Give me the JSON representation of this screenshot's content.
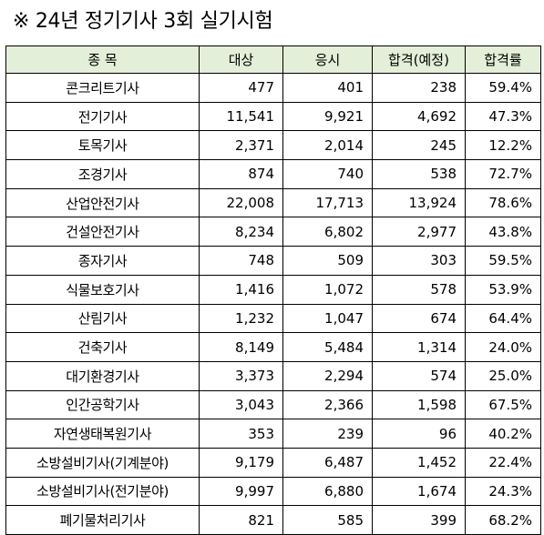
{
  "title": "※ 24년 정기기사 3회 실기시험",
  "table": {
    "headers": {
      "name": "종  목",
      "applicants": "대상",
      "examinees": "응시",
      "passed": "합격(예정)",
      "pass_rate": "합격률"
    },
    "rows": [
      {
        "name": "콘크리트기사",
        "applicants": "477",
        "examinees": "401",
        "passed": "238",
        "pass_rate": "59.4%"
      },
      {
        "name": "전기기사",
        "applicants": "11,541",
        "examinees": "9,921",
        "passed": "4,692",
        "pass_rate": "47.3%"
      },
      {
        "name": "토목기사",
        "applicants": "2,371",
        "examinees": "2,014",
        "passed": "245",
        "pass_rate": "12.2%"
      },
      {
        "name": "조경기사",
        "applicants": "874",
        "examinees": "740",
        "passed": "538",
        "pass_rate": "72.7%"
      },
      {
        "name": "산업안전기사",
        "applicants": "22,008",
        "examinees": "17,713",
        "passed": "13,924",
        "pass_rate": "78.6%"
      },
      {
        "name": "건설안전기사",
        "applicants": "8,234",
        "examinees": "6,802",
        "passed": "2,977",
        "pass_rate": "43.8%"
      },
      {
        "name": "종자기사",
        "applicants": "748",
        "examinees": "509",
        "passed": "303",
        "pass_rate": "59.5%"
      },
      {
        "name": "식물보호기사",
        "applicants": "1,416",
        "examinees": "1,072",
        "passed": "578",
        "pass_rate": "53.9%"
      },
      {
        "name": "산림기사",
        "applicants": "1,232",
        "examinees": "1,047",
        "passed": "674",
        "pass_rate": "64.4%"
      },
      {
        "name": "건축기사",
        "applicants": "8,149",
        "examinees": "5,484",
        "passed": "1,314",
        "pass_rate": "24.0%"
      },
      {
        "name": "대기환경기사",
        "applicants": "3,373",
        "examinees": "2,294",
        "passed": "574",
        "pass_rate": "25.0%"
      },
      {
        "name": "인간공학기사",
        "applicants": "3,043",
        "examinees": "2,366",
        "passed": "1,598",
        "pass_rate": "67.5%"
      },
      {
        "name": "자연생태복원기사",
        "applicants": "353",
        "examinees": "239",
        "passed": "96",
        "pass_rate": "40.2%"
      },
      {
        "name": "소방설비기사(기계분야)",
        "applicants": "9,179",
        "examinees": "6,487",
        "passed": "1,452",
        "pass_rate": "22.4%"
      },
      {
        "name": "소방설비기사(전기분야)",
        "applicants": "9,997",
        "examinees": "6,880",
        "passed": "1,674",
        "pass_rate": "24.3%"
      },
      {
        "name": "폐기물처리기사",
        "applicants": "821",
        "examinees": "585",
        "passed": "399",
        "pass_rate": "68.2%"
      }
    ]
  },
  "colors": {
    "header_background": "#e3efd8",
    "border": "#000000"
  }
}
